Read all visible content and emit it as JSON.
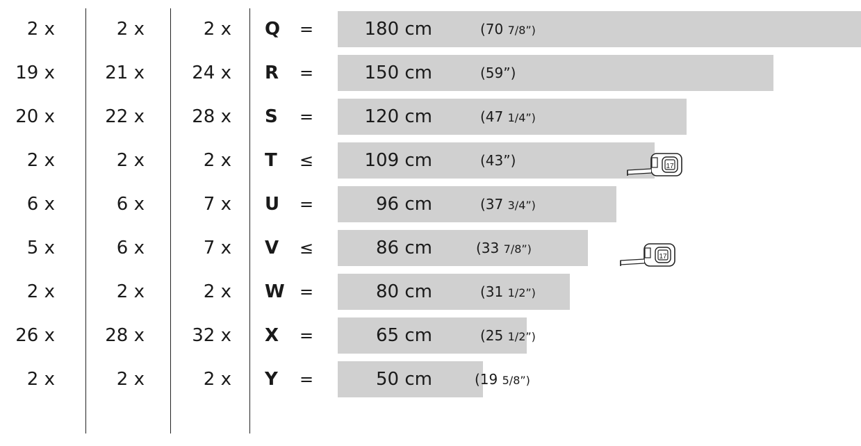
{
  "rows": [
    {
      "c1": "2 x",
      "c2": "2 x",
      "c3": "2 x",
      "letter": "Q",
      "op": "=",
      "cm": "180 cm",
      "inch_whole": "(70",
      "inch_frac": "7/8”)",
      "bar_fraction": 1.0,
      "tape": false
    },
    {
      "c1": "19 x",
      "c2": "21 x",
      "c3": "24 x",
      "letter": "R",
      "op": "=",
      "cm": "150 cm",
      "inch_whole": "(59”)",
      "inch_frac": "",
      "bar_fraction": 0.833,
      "tape": false
    },
    {
      "c1": "20 x",
      "c2": "22 x",
      "c3": "28 x",
      "letter": "S",
      "op": "=",
      "cm": "120 cm",
      "inch_whole": "(47",
      "inch_frac": "1/4”)",
      "bar_fraction": 0.667,
      "tape": false
    },
    {
      "c1": "2 x",
      "c2": "2 x",
      "c3": "2 x",
      "letter": "T",
      "op": "≤",
      "cm": "109 cm",
      "inch_whole": "(43”)",
      "inch_frac": "",
      "bar_fraction": 0.606,
      "tape": true
    },
    {
      "c1": "6 x",
      "c2": "6 x",
      "c3": "7 x",
      "letter": "U",
      "op": "=",
      "cm": "96 cm",
      "inch_whole": "(37",
      "inch_frac": "3/4”)",
      "bar_fraction": 0.533,
      "tape": false
    },
    {
      "c1": "5 x",
      "c2": "6 x",
      "c3": "7 x",
      "letter": "V",
      "op": "≤",
      "cm": "86 cm",
      "inch_whole": "(33",
      "inch_frac": "7/8”)",
      "bar_fraction": 0.478,
      "tape": true
    },
    {
      "c1": "2 x",
      "c2": "2 x",
      "c3": "2 x",
      "letter": "W",
      "op": "=",
      "cm": "80 cm",
      "inch_whole": "(31",
      "inch_frac": "1/2”)",
      "bar_fraction": 0.444,
      "tape": false
    },
    {
      "c1": "26 x",
      "c2": "28 x",
      "c3": "32 x",
      "letter": "X",
      "op": "=",
      "cm": "65 cm",
      "inch_whole": "(25",
      "inch_frac": "1/2”)",
      "bar_fraction": 0.361,
      "tape": false
    },
    {
      "c1": "2 x",
      "c2": "2 x",
      "c3": "2 x",
      "letter": "Y",
      "op": "=",
      "cm": "50 cm",
      "inch_whole": "(19",
      "inch_frac": "5/8”)",
      "bar_fraction": 0.278,
      "tape": false
    }
  ],
  "colors": {
    "bar": "#d0d0d0",
    "text": "#1a1a1a",
    "line": "#222222"
  },
  "icons": {
    "tape": "tape-measure-icon"
  }
}
